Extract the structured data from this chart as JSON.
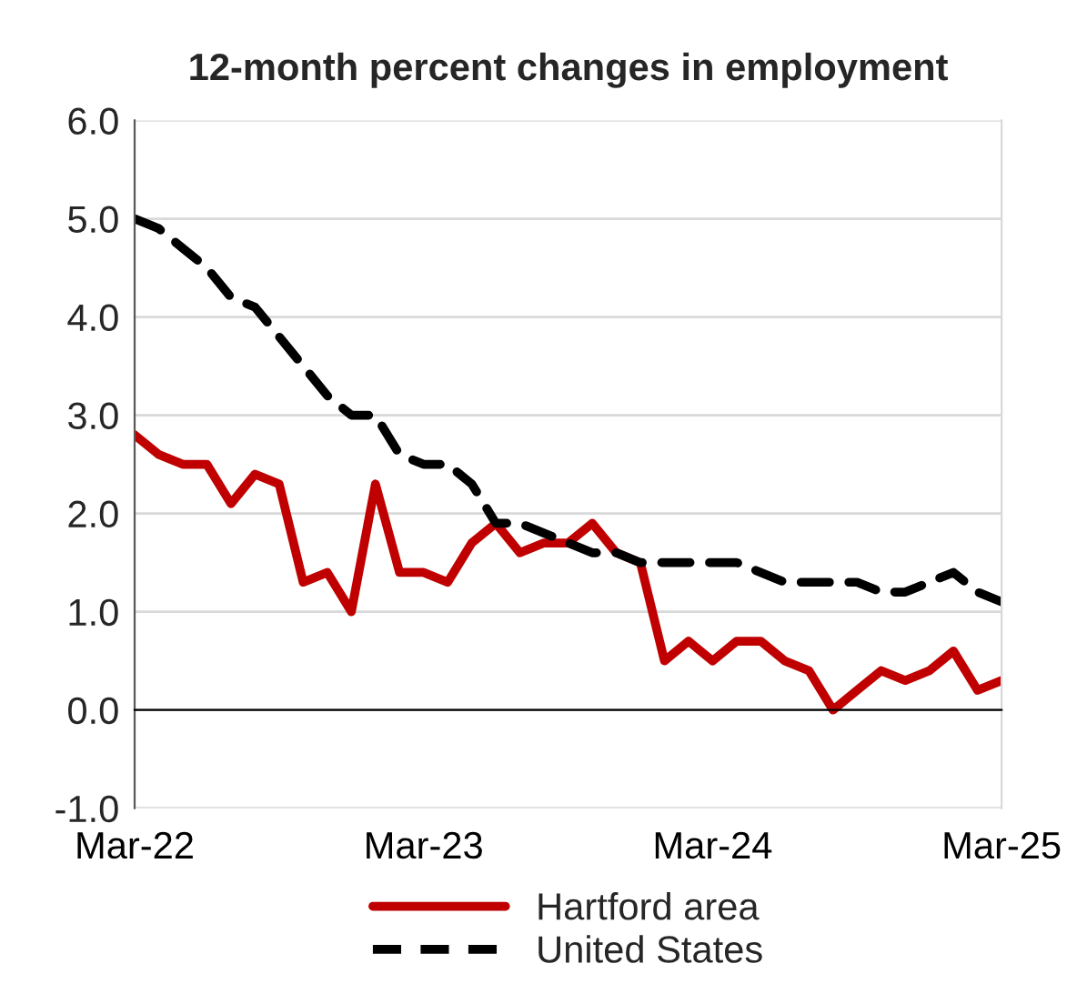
{
  "chart_data": {
    "type": "line",
    "title": "12-month percent changes in employment",
    "x": [
      "2022-03",
      "2022-04",
      "2022-05",
      "2022-06",
      "2022-07",
      "2022-08",
      "2022-09",
      "2022-10",
      "2022-11",
      "2022-12",
      "2023-01",
      "2023-02",
      "2023-03",
      "2023-04",
      "2023-05",
      "2023-06",
      "2023-07",
      "2023-08",
      "2023-09",
      "2023-10",
      "2023-11",
      "2023-12",
      "2024-01",
      "2024-02",
      "2024-03",
      "2024-04",
      "2024-05",
      "2024-06",
      "2024-07",
      "2024-08",
      "2024-09",
      "2024-10",
      "2024-11",
      "2024-12",
      "2025-01",
      "2025-02",
      "2025-03"
    ],
    "series": [
      {
        "name": "Hartford area",
        "color": "#c00000",
        "line_style": "solid",
        "values": [
          2.8,
          2.6,
          2.5,
          2.5,
          2.1,
          2.4,
          2.3,
          1.3,
          1.4,
          1.0,
          2.3,
          1.4,
          1.4,
          1.3,
          1.7,
          1.9,
          1.6,
          1.7,
          1.7,
          1.9,
          1.6,
          1.5,
          0.5,
          0.7,
          0.5,
          0.7,
          0.7,
          0.5,
          0.4,
          0.0,
          0.2,
          0.4,
          0.3,
          0.4,
          0.6,
          0.2,
          0.3
        ]
      },
      {
        "name": "United States",
        "color": "#000000",
        "line_style": "dashed",
        "values": [
          5.0,
          4.9,
          4.7,
          4.5,
          4.2,
          4.1,
          3.8,
          3.5,
          3.2,
          3.0,
          3.0,
          2.6,
          2.5,
          2.5,
          2.3,
          1.9,
          1.9,
          1.8,
          1.7,
          1.6,
          1.6,
          1.5,
          1.5,
          1.5,
          1.5,
          1.5,
          1.4,
          1.3,
          1.3,
          1.3,
          1.3,
          1.2,
          1.2,
          1.3,
          1.4,
          1.2,
          1.1
        ]
      }
    ],
    "xlim": [
      "2022-03",
      "2025-03"
    ],
    "xticks": [
      {
        "value": "2022-03",
        "label": "Mar-22"
      },
      {
        "value": "2023-03",
        "label": "Mar-23"
      },
      {
        "value": "2024-03",
        "label": "Mar-24"
      },
      {
        "value": "2025-03",
        "label": "Mar-25"
      }
    ],
    "ylim": [
      -1.0,
      6.0
    ],
    "yticks": [
      {
        "value": -1.0,
        "label": "-1.0"
      },
      {
        "value": 0.0,
        "label": "0.0"
      },
      {
        "value": 1.0,
        "label": "1.0"
      },
      {
        "value": 2.0,
        "label": "2.0"
      },
      {
        "value": 3.0,
        "label": "3.0"
      },
      {
        "value": 4.0,
        "label": "4.0"
      },
      {
        "value": 5.0,
        "label": "5.0"
      },
      {
        "value": 6.0,
        "label": "6.0"
      }
    ],
    "grid": "y",
    "legend": "bottom",
    "marker": "none"
  }
}
